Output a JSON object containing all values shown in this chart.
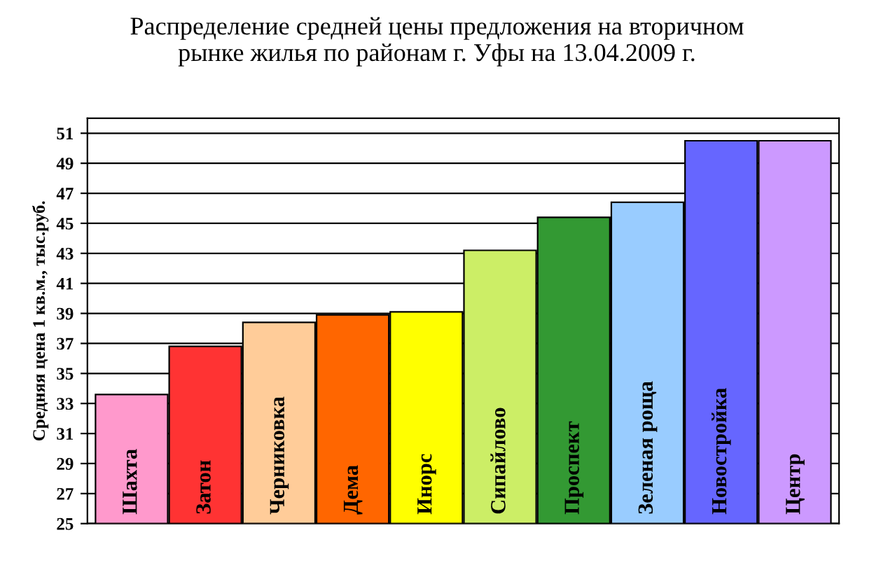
{
  "chart_data": {
    "type": "bar",
    "title": "Распределение средней цены предложения на вторичном\nрынке жилья по районам г. Уфы на 13.04.2009 г.",
    "ylabel": "Средняя цена 1 кв.м., тыс.руб.",
    "categories": [
      "Шахта",
      "Затон",
      "Черниковка",
      "Дема",
      "Инорс",
      "Сипайлово",
      "Проспект",
      "Зеленая роща",
      "Новостройка",
      "Центр"
    ],
    "values": [
      33.6,
      36.8,
      38.4,
      38.9,
      39.1,
      43.2,
      45.4,
      46.4,
      50.5,
      50.5
    ],
    "colors": [
      "#ff99cc",
      "#ff3333",
      "#ffcc99",
      "#ff6600",
      "#ffff00",
      "#ccee66",
      "#339933",
      "#99ccff",
      "#6666ff",
      "#cc99ff"
    ],
    "ylim": [
      25,
      52
    ],
    "yticks": [
      25,
      27,
      29,
      31,
      33,
      35,
      37,
      39,
      41,
      43,
      45,
      47,
      49,
      51
    ],
    "grid": "y",
    "legend": false
  }
}
